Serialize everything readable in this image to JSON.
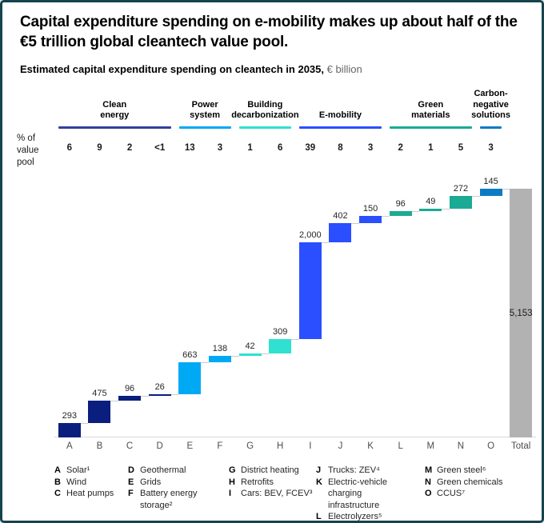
{
  "frame": {
    "border_color": "#15444d",
    "background": "#ffffff"
  },
  "header": {
    "title": "Capital expenditure spending on e-mobility makes up about half of the €5 trillion global cleantech value pool.",
    "subtitle_bold": "Estimated capital expenditure spending on cleantech in 2035,",
    "subtitle_unit": " € billion"
  },
  "pct_note": "% of\nvalue\npool",
  "chart_data": {
    "type": "bar",
    "subtype": "waterfall",
    "title": "Estimated capital expenditure spending on cleantech in 2035, € billion",
    "categories": [
      "A",
      "B",
      "C",
      "D",
      "E",
      "F",
      "G",
      "H",
      "I",
      "J",
      "K",
      "L",
      "M",
      "N",
      "O",
      "Total"
    ],
    "values": [
      293,
      475,
      96,
      26,
      663,
      138,
      42,
      309,
      2000,
      402,
      150,
      96,
      49,
      272,
      145
    ],
    "value_labels": [
      "293",
      "475",
      "96",
      "26",
      "663",
      "138",
      "42",
      "309",
      "2,000",
      "402",
      "150",
      "96",
      "49",
      "272",
      "145"
    ],
    "total": 5153,
    "total_label": "5,153",
    "total_color": "#b2b2b2",
    "ylim": [
      0,
      5153
    ],
    "grid": false,
    "pct_of_value_pool": [
      "6",
      "9",
      "2",
      "<1",
      "13",
      "3",
      "1",
      "6",
      "39",
      "8",
      "3",
      "2",
      "1",
      "5",
      "3"
    ],
    "groups": [
      {
        "label": "Clean\nenergy",
        "start": 0,
        "end": 3,
        "line_color": "#333f9e",
        "bar_color": "#0a1e7d"
      },
      {
        "label": "Power\nsystem",
        "start": 4,
        "end": 5,
        "line_color": "#00a9f4",
        "bar_color": "#00a9f4"
      },
      {
        "label": "Building\ndecarbonization",
        "start": 6,
        "end": 7,
        "line_color": "#30e0d0",
        "bar_color": "#30e0d0"
      },
      {
        "label": "E-mobility",
        "start": 8,
        "end": 10,
        "line_color": "#2b4eff",
        "bar_color": "#2b4eff"
      },
      {
        "label": "Green\nmaterials",
        "start": 11,
        "end": 13,
        "line_color": "#1baa93",
        "bar_color": "#1baa93"
      },
      {
        "label": "Carbon-\nnegative\nsolutions",
        "start": 14,
        "end": 14,
        "line_color": "#0d7ac4",
        "bar_color": "#0d7ac4"
      }
    ]
  },
  "legend": {
    "columns": [
      {
        "entries": [
          {
            "key": "A",
            "label": "Solar¹"
          },
          {
            "key": "B",
            "label": "Wind"
          },
          {
            "key": "C",
            "label": "Heat pumps"
          }
        ]
      },
      {
        "entries": [
          {
            "key": "D",
            "label": "Geothermal"
          },
          {
            "key": "E",
            "label": "Grids"
          },
          {
            "key": "F",
            "label": "Battery energy storage²"
          }
        ]
      },
      {
        "entries": [
          {
            "key": "G",
            "label": "District heating"
          },
          {
            "key": "H",
            "label": "Retrofits"
          },
          {
            "key": "I",
            "label": "Cars: BEV, FCEV³"
          }
        ]
      },
      {
        "entries": [
          {
            "key": "J",
            "label": "Trucks: ZEV⁴"
          },
          {
            "key": "K",
            "label": "Electric-vehicle charging infrastructure"
          },
          {
            "key": "L",
            "label": "Electrolyzers⁵"
          }
        ]
      },
      {
        "entries": [
          {
            "key": "M",
            "label": "Green steel⁶"
          },
          {
            "key": "N",
            "label": "Green chemicals"
          },
          {
            "key": "O",
            "label": "CCUS⁷"
          }
        ]
      }
    ]
  }
}
